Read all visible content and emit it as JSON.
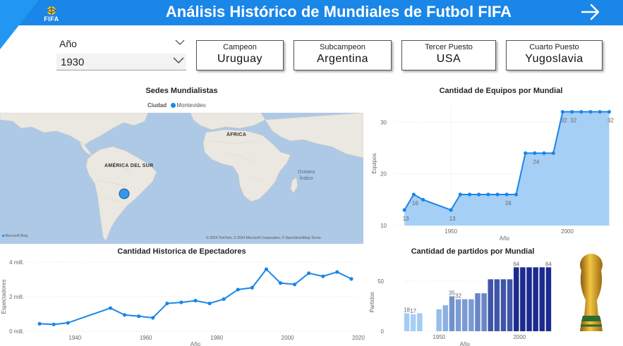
{
  "header": {
    "title": "Análisis Histórico de Mundiales de Futbol FIFA",
    "logo_text": "FIFA",
    "colors": {
      "bar": "#1a86e8",
      "notch": "#2196f3"
    },
    "nav_icon": "arrow-right-icon"
  },
  "slicer": {
    "label": "Año",
    "value": "1930"
  },
  "cards": [
    {
      "label": "Campeon",
      "value": "Uruguay"
    },
    {
      "label": "Subcampeon",
      "value": "Argentina"
    },
    {
      "label": "Tercer Puesto",
      "value": "USA"
    },
    {
      "label": "Cuarto Puesto",
      "value": "Yugoslavia"
    }
  ],
  "map": {
    "title": "Sedes Mundialistas",
    "legend_title": "Ciudad",
    "legend_item": "Montevideo",
    "labels": {
      "south_america": "AMÉRICA DEL SUR",
      "africa": "ÁFRICA",
      "ocean_line1": "Océano",
      "ocean_line2": "Índico"
    },
    "provider": "Microsoft Bing",
    "attribution": "© 2024 TomTom, © 2024 Microsoft Corporation, © OpenStreetMap  Terms",
    "colors": {
      "water": "#aec9e6",
      "land": "#ebe8e1",
      "marker": "#1a86e8"
    }
  },
  "chart_data": [
    {
      "id": "teams",
      "type": "area",
      "title": "Cantidad de Equipos por Mundial",
      "xlabel": "Año",
      "ylabel": "Equipos",
      "x": [
        1930,
        1934,
        1938,
        1950,
        1954,
        1958,
        1962,
        1966,
        1970,
        1974,
        1978,
        1982,
        1986,
        1990,
        1994,
        1998,
        2002,
        2006,
        2010,
        2014,
        2018
      ],
      "values": [
        13,
        16,
        15,
        13,
        16,
        16,
        16,
        16,
        16,
        16,
        16,
        24,
        24,
        24,
        24,
        32,
        32,
        32,
        32,
        32,
        32
      ],
      "data_labels": [
        {
          "x": 1930,
          "y": 13,
          "text": "13"
        },
        {
          "x": 1934,
          "y": 16,
          "text": "16"
        },
        {
          "x": 1950,
          "y": 13,
          "text": "13"
        },
        {
          "x": 1974,
          "y": 16,
          "text": "16"
        },
        {
          "x": 1986,
          "y": 24,
          "text": "24"
        },
        {
          "x": 1998,
          "y": 32,
          "text": "32"
        },
        {
          "x": 2002,
          "y": 32,
          "text": "32"
        },
        {
          "x": 2018,
          "y": 32,
          "text": "32"
        }
      ],
      "xticks": [
        1950,
        2000
      ],
      "yticks": [
        10,
        20,
        30
      ],
      "ylim": [
        10,
        34
      ],
      "colors": {
        "line": "#1a86e8",
        "fill": "#a6cff5"
      }
    },
    {
      "id": "spectators",
      "type": "line",
      "title": "Cantidad Historica de Epectadores",
      "xlabel": "Año",
      "ylabel": "Espectadores",
      "x": [
        1930,
        1934,
        1938,
        1950,
        1954,
        1958,
        1962,
        1966,
        1970,
        1974,
        1978,
        1982,
        1986,
        1990,
        1994,
        1998,
        2002,
        2006,
        2010,
        2014,
        2018
      ],
      "values": [
        434000,
        395000,
        483000,
        1340000,
        944000,
        868000,
        776000,
        1610000,
        1670000,
        1770000,
        1610000,
        1860000,
        2410000,
        2520000,
        3590000,
        2790000,
        2710000,
        3360000,
        3180000,
        3430000,
        3030000
      ],
      "xticks": [
        1940,
        1960,
        1980,
        2000,
        2020
      ],
      "yticks": [
        0,
        2000000,
        4000000
      ],
      "ytick_labels": [
        "0 mill.",
        "2 mill.",
        "4 mill."
      ],
      "ylim": [
        0,
        4000000
      ],
      "colors": {
        "line": "#1a86e8"
      }
    },
    {
      "id": "matches",
      "type": "bar",
      "title": "Cantidad de partidos por Mundial",
      "xlabel": "Año",
      "ylabel": "Partidos",
      "x": [
        1930,
        1934,
        1938,
        1950,
        1954,
        1958,
        1962,
        1966,
        1970,
        1974,
        1978,
        1982,
        1986,
        1990,
        1994,
        1998,
        2002,
        2006,
        2010,
        2014,
        2018
      ],
      "values": [
        18,
        17,
        18,
        22,
        26,
        35,
        32,
        32,
        32,
        38,
        38,
        52,
        52,
        52,
        52,
        64,
        64,
        64,
        64,
        64,
        64
      ],
      "data_labels": [
        {
          "x": 1930,
          "text": "18"
        },
        {
          "x": 1934,
          "text": "17"
        },
        {
          "x": 1958,
          "text": "35"
        },
        {
          "x": 1962,
          "text": "32"
        },
        {
          "x": 1998,
          "text": "64"
        },
        {
          "x": 2018,
          "text": "64"
        }
      ],
      "xticks": [
        1950,
        2000
      ],
      "yticks": [
        0,
        50
      ],
      "ylim": [
        0,
        72
      ],
      "colors": {
        "low": "#a6cff5",
        "high": "#1c2b8f"
      }
    }
  ],
  "trophy_icon": "world-cup-trophy-icon"
}
